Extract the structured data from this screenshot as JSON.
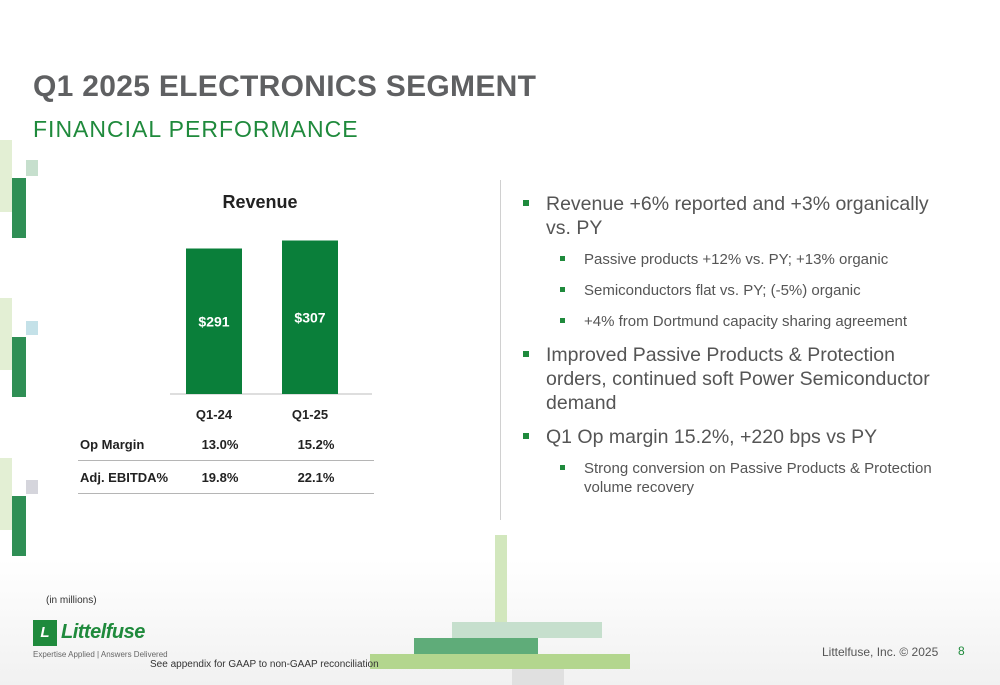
{
  "title": "Q1 2025 ELECTRONICS SEGMENT",
  "subtitle": "FINANCIAL PERFORMANCE",
  "colors": {
    "brand_green": "#1f8a3c",
    "bar_green": "#0a7f3a",
    "title_gray": "#5f6062"
  },
  "chart_data": {
    "type": "bar",
    "title": "Revenue",
    "categories": [
      "Q1-24",
      "Q1-25"
    ],
    "values": [
      291,
      307
    ],
    "data_labels": [
      "$291",
      "$307"
    ],
    "xlabel": "",
    "ylabel": "",
    "ylim": [
      0,
      320
    ],
    "grid": false,
    "legend": "none"
  },
  "metrics": [
    {
      "label": "Op Margin",
      "q1_24": "13.0%",
      "q1_25": "15.2%"
    },
    {
      "label": "Adj. EBITDA%",
      "q1_24": "19.8%",
      "q1_25": "22.1%"
    }
  ],
  "bullets": [
    {
      "level": 1,
      "text": "Revenue +6% reported and +3% organically vs. PY"
    },
    {
      "level": 2,
      "text": "Passive products +12% vs. PY; +13% organic"
    },
    {
      "level": 2,
      "text": "Semiconductors flat vs. PY; (-5%) organic"
    },
    {
      "level": 2,
      "text": "+4% from Dortmund capacity sharing agreement"
    },
    {
      "level": 1,
      "text": "Improved Passive Products & Protection orders, continued soft Power Semiconductor demand"
    },
    {
      "level": 1,
      "text": "Q1 Op margin 15.2%, +220 bps vs PY"
    },
    {
      "level": 2,
      "text": "Strong conversion on Passive Products & Protection volume recovery"
    }
  ],
  "units_note": "(in millions)",
  "footnote": "See appendix for GAAP to non-GAAP reconciliation",
  "logo": {
    "name": "Littelfuse",
    "tagline": "Expertise Applied | Answers Delivered",
    "icon": "littelfuse-logo-icon"
  },
  "footer": {
    "copyright": "Littelfuse, Inc. © 2025",
    "page_number": "8"
  }
}
